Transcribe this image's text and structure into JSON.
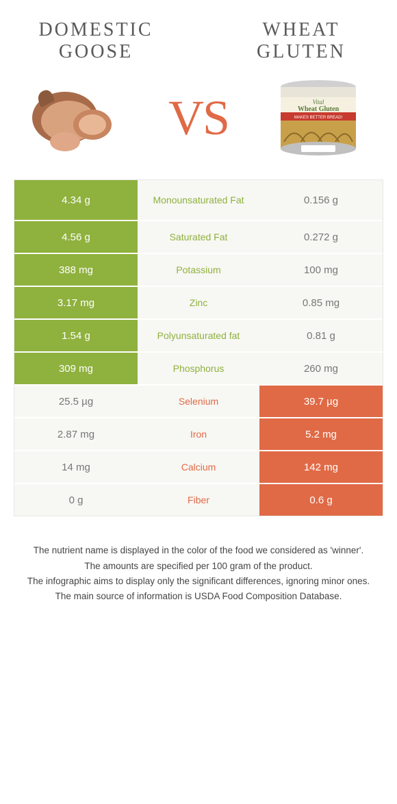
{
  "colors": {
    "green": "#8fb13e",
    "orange": "#e06a46",
    "light_bg": "#f7f7f3",
    "title_gray": "#5a5a5a",
    "text_dark": "#444444",
    "white": "#ffffff"
  },
  "header": {
    "left_title": "DOMESTIC GOOSE",
    "right_title": "WHEAT GLUTEN",
    "vs": "VS"
  },
  "rows": [
    {
      "nutrient": "Monounsaturated Fat",
      "left": "4.34 g",
      "right": "0.156 g",
      "winner": "left",
      "tall": true
    },
    {
      "nutrient": "Saturated Fat",
      "left": "4.56 g",
      "right": "0.272 g",
      "winner": "left",
      "tall": false
    },
    {
      "nutrient": "Potassium",
      "left": "388 mg",
      "right": "100 mg",
      "winner": "left",
      "tall": false
    },
    {
      "nutrient": "Zinc",
      "left": "3.17 mg",
      "right": "0.85 mg",
      "winner": "left",
      "tall": false
    },
    {
      "nutrient": "Polyunsaturated fat",
      "left": "1.54 g",
      "right": "0.81 g",
      "winner": "left",
      "tall": false
    },
    {
      "nutrient": "Phosphorus",
      "left": "309 mg",
      "right": "260 mg",
      "winner": "left",
      "tall": false
    },
    {
      "nutrient": "Selenium",
      "left": "25.5 µg",
      "right": "39.7 µg",
      "winner": "right",
      "tall": false
    },
    {
      "nutrient": "Iron",
      "left": "2.87 mg",
      "right": "5.2 mg",
      "winner": "right",
      "tall": false
    },
    {
      "nutrient": "Calcium",
      "left": "14 mg",
      "right": "142 mg",
      "winner": "right",
      "tall": false
    },
    {
      "nutrient": "Fiber",
      "left": "0 g",
      "right": "0.6 g",
      "winner": "right",
      "tall": false
    }
  ],
  "footnotes": [
    "The nutrient name is displayed in the color of the food we considered as 'winner'.",
    "The amounts are specified per 100 gram of the product.",
    "The infographic aims to display only the significant differences, ignoring minor ones.",
    "The main source of information is USDA Food Composition Database."
  ]
}
